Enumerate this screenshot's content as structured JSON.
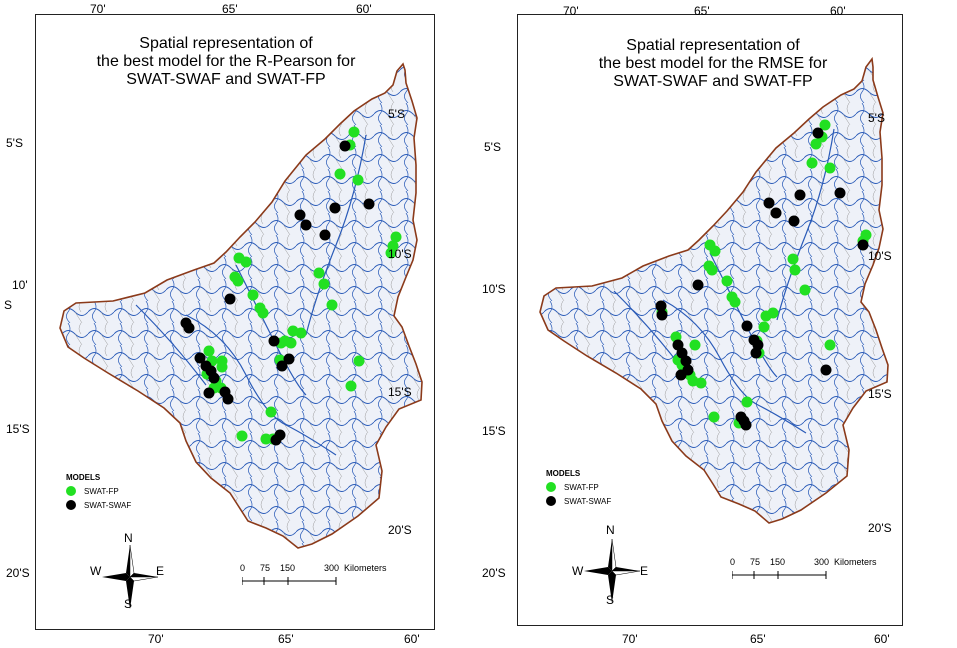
{
  "maps": [
    {
      "title_lines": [
        "Spatial representation of",
        "the best model for the R-Pearson for",
        "SWAT-SWAF and SWAT-FP"
      ],
      "top_ticks": [
        "70'",
        "65'",
        "60'"
      ],
      "bottom_ticks": [
        "70'",
        "65'",
        "60'"
      ],
      "left_ticks": [
        "5'S",
        "10'",
        "S",
        "15'S",
        "20'S"
      ],
      "right_ticks": [
        "5'S",
        "10'S",
        "15'S",
        "20'S"
      ],
      "fp_points": [
        [
          318,
          117
        ],
        [
          314,
          130
        ],
        [
          304,
          159
        ],
        [
          322,
          165
        ],
        [
          360,
          222
        ],
        [
          357,
          231
        ],
        [
          355,
          238
        ],
        [
          203,
          243
        ],
        [
          210,
          247
        ],
        [
          199,
          262
        ],
        [
          202,
          266
        ],
        [
          217,
          280
        ],
        [
          224,
          293
        ],
        [
          227,
          298
        ],
        [
          283,
          258
        ],
        [
          288,
          269
        ],
        [
          296,
          290
        ],
        [
          257,
          316
        ],
        [
          265,
          318
        ],
        [
          249,
          326
        ],
        [
          255,
          328
        ],
        [
          245,
          328
        ],
        [
          186,
          346
        ],
        [
          173,
          336
        ],
        [
          176,
          346
        ],
        [
          186,
          352
        ],
        [
          244,
          345
        ],
        [
          171,
          359
        ],
        [
          180,
          366
        ],
        [
          178,
          373
        ],
        [
          185,
          373
        ],
        [
          323,
          346
        ],
        [
          315,
          371
        ],
        [
          235,
          397
        ],
        [
          206,
          421
        ],
        [
          237,
          424
        ],
        [
          230,
          424
        ]
      ],
      "swaf_points": [
        [
          309,
          131
        ],
        [
          299,
          193
        ],
        [
          264,
          200
        ],
        [
          270,
          210
        ],
        [
          333,
          189
        ],
        [
          289,
          220
        ],
        [
          194,
          284
        ],
        [
          150,
          308
        ],
        [
          153,
          313
        ],
        [
          238,
          326
        ],
        [
          253,
          344
        ],
        [
          246,
          351
        ],
        [
          164,
          343
        ],
        [
          170,
          351
        ],
        [
          175,
          356
        ],
        [
          178,
          363
        ],
        [
          189,
          377
        ],
        [
          192,
          384
        ],
        [
          173,
          378
        ],
        [
          244,
          420
        ],
        [
          240,
          425
        ]
      ],
      "legend": {
        "title": "MODELS",
        "fp": "SWAT-FP",
        "swaf": "SWAT-SWAF"
      },
      "scale": {
        "labels": [
          "0",
          "75",
          "150",
          "300"
        ],
        "unit": "Kilometers"
      },
      "compass": {
        "n": "N",
        "s": "S",
        "e": "E",
        "w": "W"
      }
    },
    {
      "title_lines": [
        "Spatial representation of",
        "the best model for the RMSE for",
        "SWAT-SWAF and SWAT-FP"
      ],
      "top_ticks": [
        "70'",
        "65'",
        "60'"
      ],
      "bottom_ticks": [
        "70'",
        "65'",
        "60'"
      ],
      "left_ticks": [
        "5'S",
        "10'S",
        "15'S",
        "20'S"
      ],
      "right_ticks": [
        "5'S",
        "10'S",
        "15'S",
        "20'S"
      ],
      "fp_points": [
        [
          307,
          110
        ],
        [
          304,
          122
        ],
        [
          298,
          129
        ],
        [
          294,
          148
        ],
        [
          312,
          153
        ],
        [
          348,
          220
        ],
        [
          345,
          226
        ],
        [
          192,
          230
        ],
        [
          197,
          236
        ],
        [
          191,
          251
        ],
        [
          194,
          255
        ],
        [
          209,
          266
        ],
        [
          214,
          282
        ],
        [
          217,
          287
        ],
        [
          275,
          244
        ],
        [
          277,
          255
        ],
        [
          287,
          275
        ],
        [
          248,
          301
        ],
        [
          255,
          298
        ],
        [
          246,
          312
        ],
        [
          239,
          326
        ],
        [
          241,
          338
        ],
        [
          177,
          330
        ],
        [
          144,
          297
        ],
        [
          158,
          322
        ],
        [
          160,
          345
        ],
        [
          164,
          350
        ],
        [
          166,
          355
        ],
        [
          172,
          360
        ],
        [
          175,
          366
        ],
        [
          183,
          368
        ],
        [
          312,
          330
        ],
        [
          229,
          387
        ],
        [
          196,
          402
        ],
        [
          221,
          408
        ]
      ],
      "swaf_points": [
        [
          300,
          118
        ],
        [
          282,
          180
        ],
        [
          251,
          188
        ],
        [
          258,
          198
        ],
        [
          322,
          178
        ],
        [
          276,
          206
        ],
        [
          180,
          270
        ],
        [
          143,
          291
        ],
        [
          144,
          300
        ],
        [
          229,
          311
        ],
        [
          236,
          325
        ],
        [
          240,
          330
        ],
        [
          238,
          338
        ],
        [
          160,
          330
        ],
        [
          164,
          338
        ],
        [
          168,
          346
        ],
        [
          163,
          360
        ],
        [
          170,
          355
        ],
        [
          345,
          230
        ],
        [
          308,
          355
        ],
        [
          223,
          402
        ],
        [
          226,
          406
        ],
        [
          228,
          410
        ]
      ],
      "legend": {
        "title": "MODELS",
        "fp": "SWAT-FP",
        "swaf": "SWAT-SWAF"
      },
      "scale": {
        "labels": [
          "0",
          "75",
          "150",
          "300"
        ],
        "unit": "Kilometers"
      },
      "compass": {
        "n": "N",
        "s": "S",
        "e": "E",
        "w": "W"
      }
    }
  ],
  "colors": {
    "basin_border": "#8b3a1a",
    "river": "#2a5bb8",
    "subbasin": "#9a9a9a",
    "basin_fill": "#eef1f8",
    "fp": "#22e022",
    "swaf": "#000000"
  }
}
